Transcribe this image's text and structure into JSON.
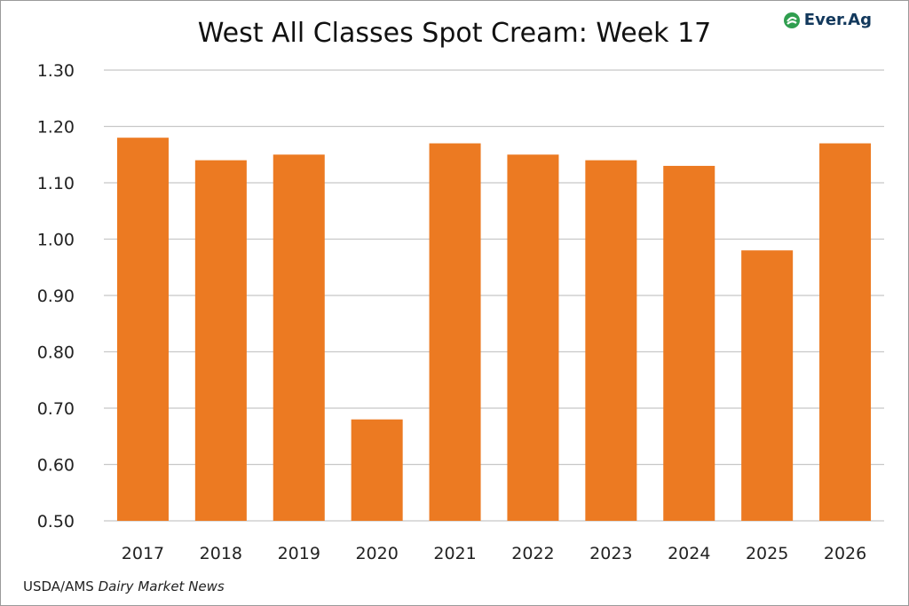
{
  "header": {
    "title": "West All Classes Spot Cream: Week 17",
    "logo_text": "Ever.Ag"
  },
  "footer": {
    "source_plain": "USDA/AMS ",
    "source_italic": "Dairy Market News"
  },
  "colors": {
    "bar": "#ec7a22",
    "grid": "#c8c8c8",
    "logo_green": "#2f9e4f",
    "logo_navy": "#12385c"
  },
  "chart_data": {
    "type": "bar",
    "title": "West All Classes Spot Cream: Week 17",
    "xlabel": "",
    "ylabel": "",
    "categories": [
      "2017",
      "2018",
      "2019",
      "2020",
      "2021",
      "2022",
      "2023",
      "2024",
      "2025",
      "2026"
    ],
    "values": [
      1.18,
      1.14,
      1.15,
      0.68,
      1.17,
      1.15,
      1.14,
      1.13,
      0.98,
      1.17
    ],
    "ylim": [
      0.5,
      1.3
    ],
    "yticks": [
      "0.50",
      "0.60",
      "0.70",
      "0.80",
      "0.90",
      "1.00",
      "1.10",
      "1.20",
      "1.30"
    ],
    "grid": true,
    "legend": "none"
  }
}
